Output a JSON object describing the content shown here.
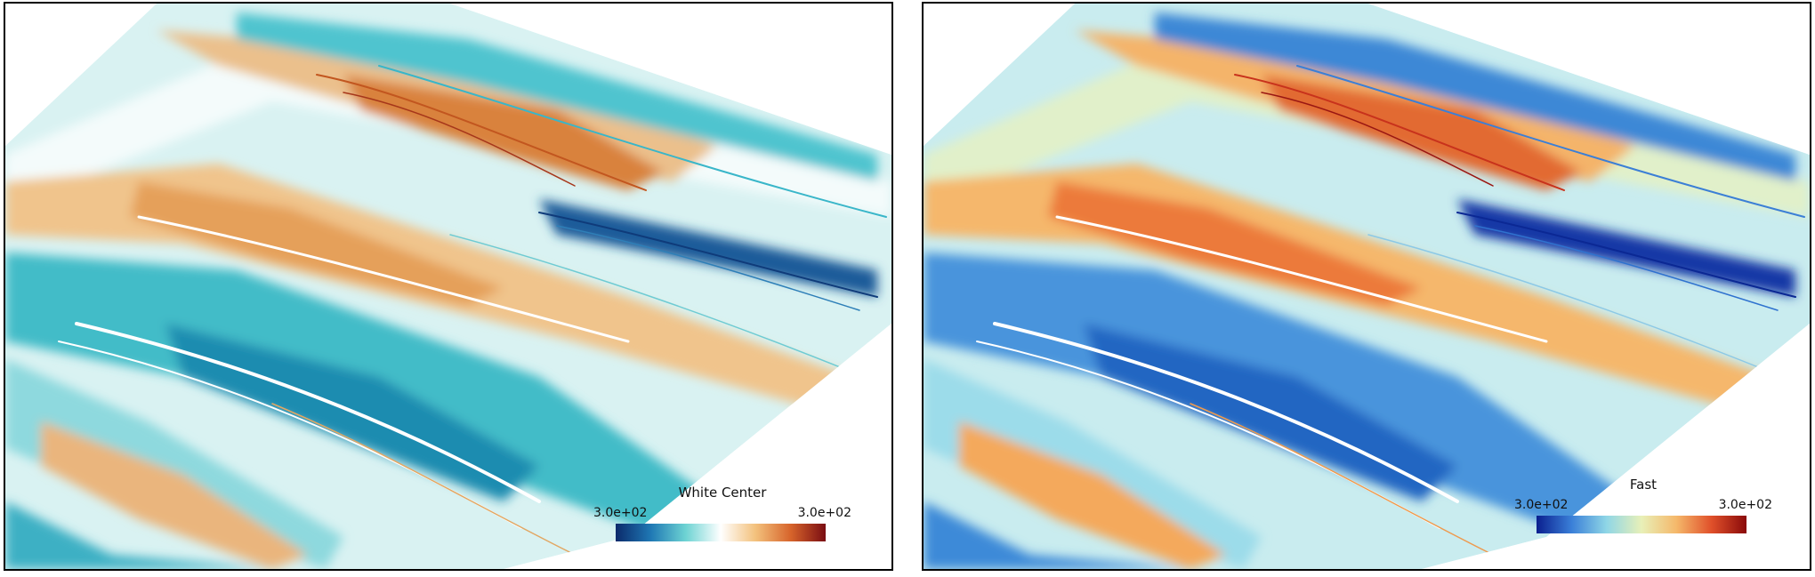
{
  "panels": [
    {
      "legend_title": "White Center",
      "legend_min": "3.0e+02",
      "legend_max": "3.0e+02",
      "colormap": [
        "#0b2a6b",
        "#1f78b4",
        "#6dd3d3",
        "#ffffff",
        "#f3c17c",
        "#d7642b",
        "#7a0d12"
      ]
    },
    {
      "legend_title": "Fast",
      "legend_min": "3.0e+02",
      "legend_max": "3.0e+02",
      "colormap": [
        "#0a1f8f",
        "#3a7fd8",
        "#8fd6e6",
        "#e8f0b8",
        "#f5b86a",
        "#e0502a",
        "#8a0a0a"
      ]
    }
  ]
}
